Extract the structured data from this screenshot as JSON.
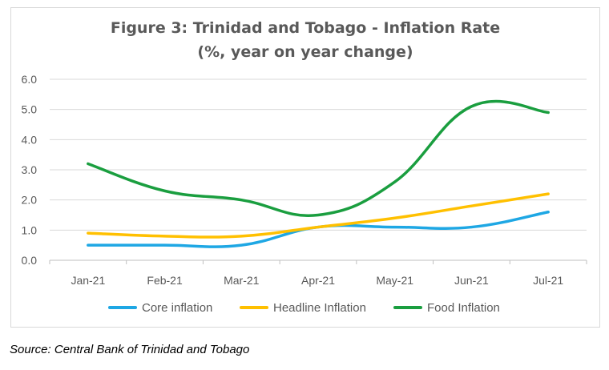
{
  "chart_data": {
    "type": "line",
    "title": "Figure 3: Trinidad and Tobago - Inflation Rate",
    "subtitle": "(%, year on year change)",
    "categories": [
      "Jan-21",
      "Feb-21",
      "Mar-21",
      "Apr-21",
      "May-21",
      "Jun-21",
      "Jul-21"
    ],
    "ylim": [
      0,
      6
    ],
    "yticks": [
      "0.0",
      "1.0",
      "2.0",
      "3.0",
      "4.0",
      "5.0",
      "6.0"
    ],
    "grid": true,
    "legend_position": "bottom",
    "series": [
      {
        "name": "Core inflation",
        "color": "#1ea7e4",
        "values": [
          0.5,
          0.5,
          0.5,
          1.1,
          1.1,
          1.1,
          1.6
        ]
      },
      {
        "name": "Headline Inflation",
        "color": "#ffc000",
        "values": [
          0.9,
          0.8,
          0.8,
          1.1,
          1.4,
          1.8,
          2.2
        ]
      },
      {
        "name": "Food Inflation",
        "color": "#1a9e3f",
        "values": [
          3.2,
          2.3,
          2.0,
          1.5,
          2.6,
          5.1,
          4.9
        ]
      }
    ]
  },
  "source": "Source: Central Bank of Trinidad and Tobago"
}
